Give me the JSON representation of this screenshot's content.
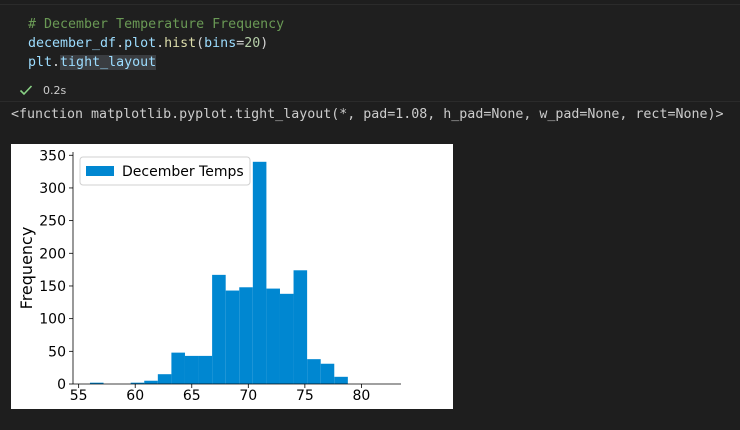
{
  "cell": {
    "code_lines": [
      {
        "tokens": [
          {
            "text": "# December Temperature Frequency",
            "cls": "tok-comment"
          }
        ]
      },
      {
        "tokens": [
          {
            "text": "december_df",
            "cls": "tok-var"
          },
          {
            "text": ".",
            "cls": "tok-punct"
          },
          {
            "text": "plot",
            "cls": "tok-var"
          },
          {
            "text": ".",
            "cls": "tok-punct"
          },
          {
            "text": "hist",
            "cls": "tok-fn"
          },
          {
            "text": "(",
            "cls": "tok-punct"
          },
          {
            "text": "bins",
            "cls": "tok-var"
          },
          {
            "text": "=",
            "cls": "tok-punct"
          },
          {
            "text": "20",
            "cls": "tok-num"
          },
          {
            "text": ")",
            "cls": "tok-punct"
          }
        ]
      },
      {
        "tokens": [
          {
            "text": "plt",
            "cls": "tok-var"
          },
          {
            "text": ".",
            "cls": "tok-punct"
          },
          {
            "text": "tight_layout",
            "cls": "tok-var tok-hl"
          }
        ]
      }
    ],
    "exec_time": "0.2s",
    "status_icon": "check-icon",
    "status_color": "#89d185"
  },
  "output": {
    "text": "<function matplotlib.pyplot.tight_layout(*, pad=1.08, h_pad=None, w_pad=None, rect=None)>"
  },
  "chart_data": {
    "type": "bar",
    "title": "",
    "xlabel": "",
    "ylabel": "Frequency",
    "xlim": [
      54.5,
      83.5
    ],
    "ylim": [
      0,
      355
    ],
    "xticks": [
      55,
      60,
      65,
      70,
      75,
      80
    ],
    "yticks": [
      0,
      50,
      100,
      150,
      200,
      250,
      300,
      350
    ],
    "grid": false,
    "legend_position": "top-left",
    "bin_edges": [
      56.0,
      57.2,
      58.4,
      59.6,
      60.8,
      62.0,
      63.2,
      64.4,
      65.6,
      66.8,
      68.0,
      69.2,
      70.4,
      71.6,
      72.8,
      74.0,
      75.2,
      76.4,
      77.6,
      78.8,
      80.0
    ],
    "series": [
      {
        "name": "December Temps",
        "color": "#0087d1",
        "values": [
          2,
          0,
          0,
          2,
          5,
          15,
          48,
          43,
          43,
          167,
          143,
          148,
          340,
          146,
          138,
          174,
          38,
          31,
          11,
          0
        ]
      }
    ]
  }
}
